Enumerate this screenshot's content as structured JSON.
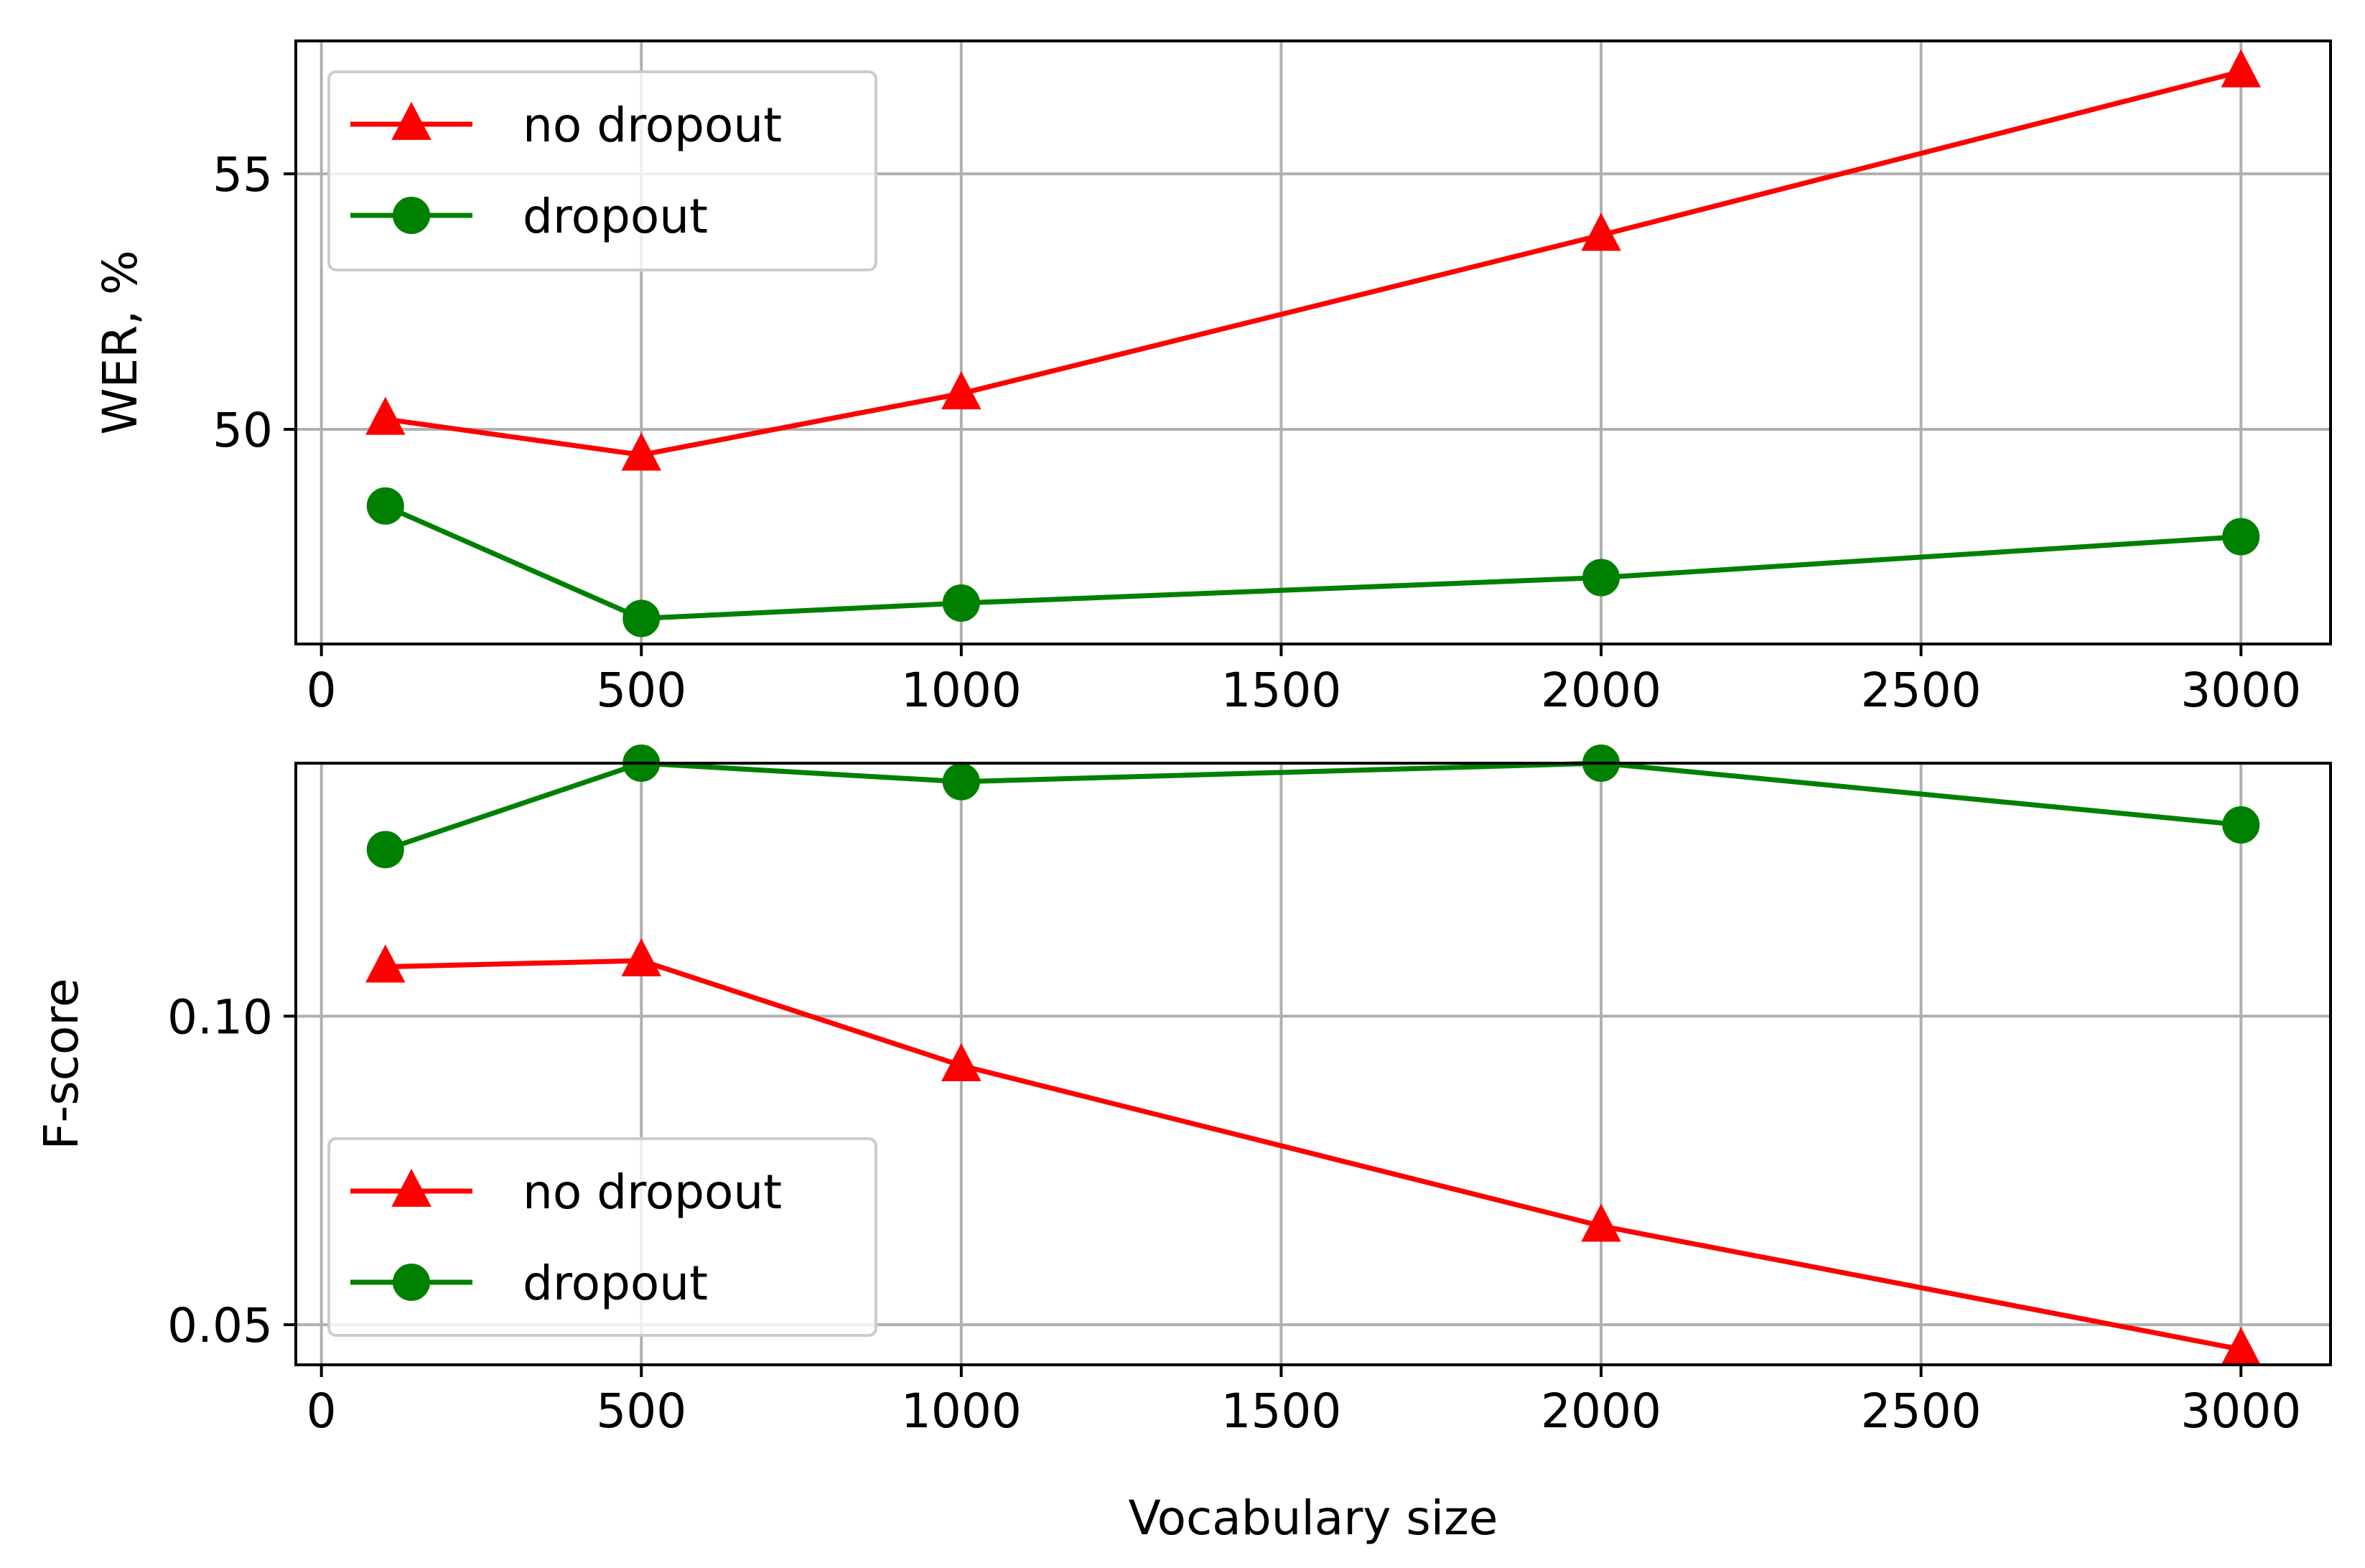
{
  "chart_data": [
    {
      "type": "line",
      "title": "",
      "xlabel": "",
      "ylabel": "WER, %",
      "x": [
        100,
        500,
        1000,
        2000,
        3000
      ],
      "xlim": [
        -40,
        3140
      ],
      "ylim": [
        45.8,
        57.6
      ],
      "xticks": [
        0,
        500,
        1000,
        1500,
        2000,
        2500,
        3000
      ],
      "yticks": [
        50,
        55
      ],
      "xtick_labels": [
        "0",
        "500",
        "1000",
        "1500",
        "2000",
        "2500",
        "3000"
      ],
      "ytick_labels": [
        "50",
        "55"
      ],
      "grid": true,
      "legend": {
        "position": "upper left",
        "entries": [
          "no dropout",
          "dropout"
        ]
      },
      "series": [
        {
          "name": "no dropout",
          "color": "#ff0000",
          "marker": "triangle",
          "values": [
            50.2,
            49.5,
            50.7,
            53.8,
            57.0
          ]
        },
        {
          "name": "dropout",
          "color": "#008000",
          "marker": "circle",
          "values": [
            48.5,
            46.3,
            46.6,
            47.1,
            47.9
          ]
        }
      ]
    },
    {
      "type": "line",
      "title": "",
      "xlabel": "Vocabulary size",
      "ylabel": "F-score",
      "x": [
        100,
        500,
        1000,
        2000,
        3000
      ],
      "xlim": [
        -40,
        3140
      ],
      "ylim": [
        0.0435,
        0.141
      ],
      "xticks": [
        0,
        500,
        1000,
        1500,
        2000,
        2500,
        3000
      ],
      "yticks": [
        0.05,
        0.1
      ],
      "xtick_labels": [
        "0",
        "500",
        "1000",
        "1500",
        "2000",
        "2500",
        "3000"
      ],
      "ytick_labels": [
        "0.05",
        "0.10"
      ],
      "grid": true,
      "legend": {
        "position": "lower left",
        "entries": [
          "no dropout",
          "dropout"
        ]
      },
      "series": [
        {
          "name": "no dropout",
          "color": "#ff0000",
          "marker": "triangle",
          "values": [
            0.108,
            0.109,
            0.092,
            0.066,
            0.046
          ]
        },
        {
          "name": "dropout",
          "color": "#008000",
          "marker": "circle",
          "values": [
            0.127,
            0.141,
            0.138,
            0.141,
            0.131
          ]
        }
      ]
    }
  ]
}
